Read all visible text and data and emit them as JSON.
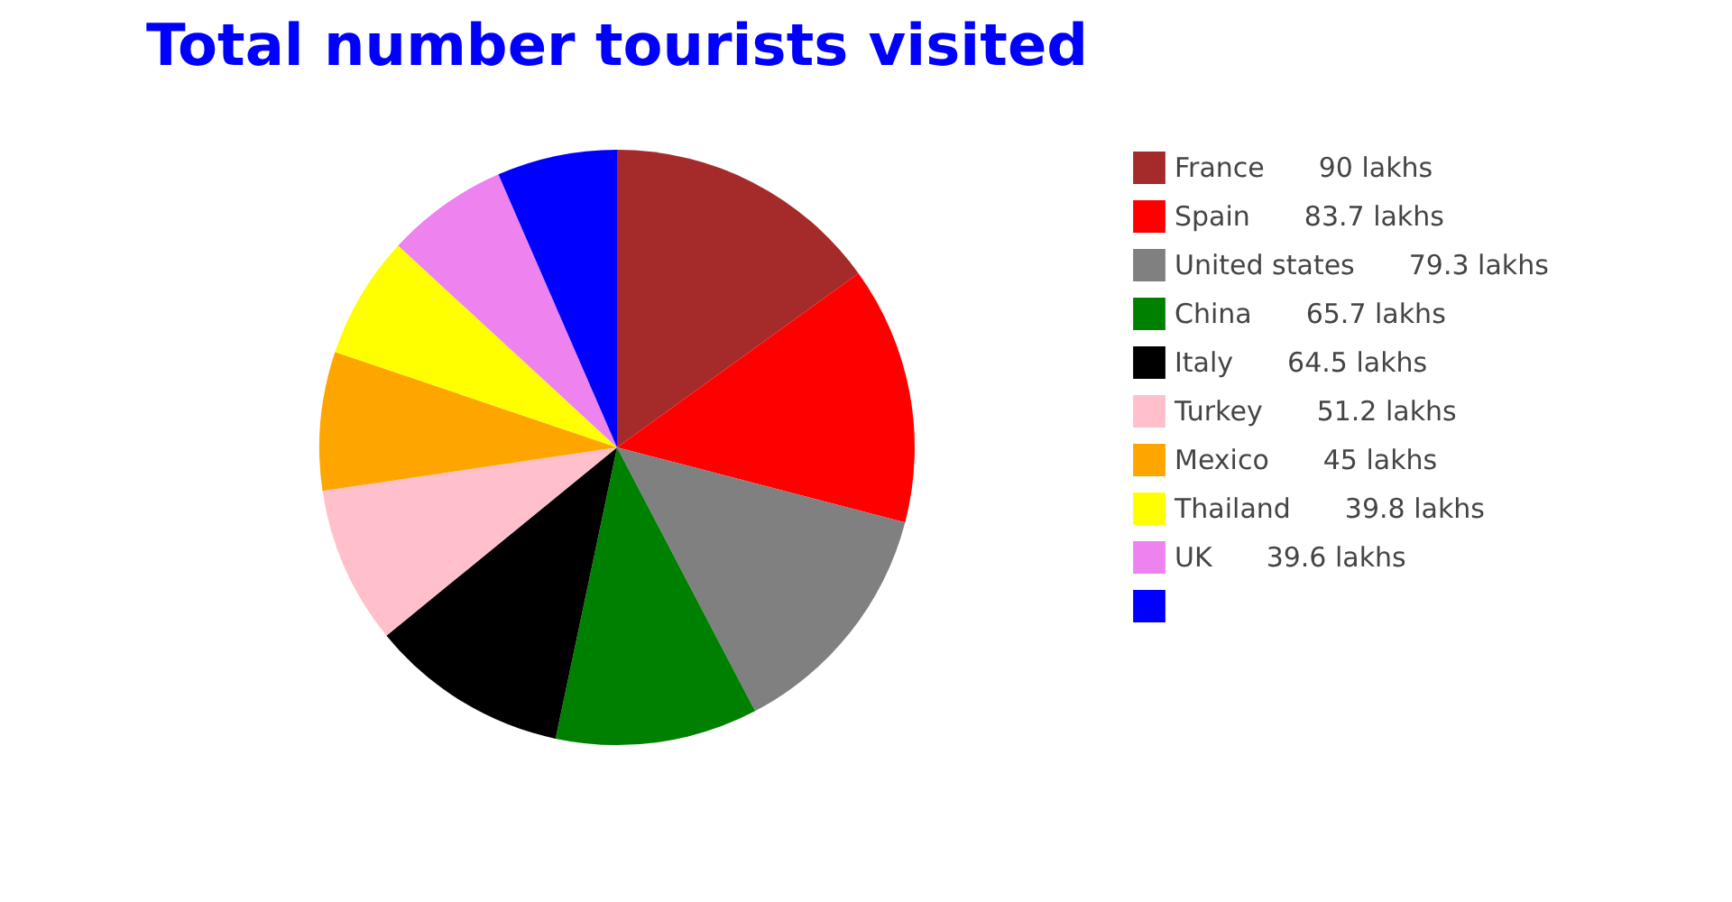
{
  "chart_data": {
    "type": "pie",
    "title": "Total number tourists visited",
    "categories": [
      "France",
      "Spain",
      "United states",
      "China",
      "Italy",
      "Turkey",
      "Mexico",
      "Thailand",
      "UK",
      null
    ],
    "values": [
      90,
      83.7,
      79.3,
      65.7,
      64.5,
      51.2,
      45,
      39.8,
      39.6,
      39
    ],
    "value_labels": [
      "90 lakhs",
      "83.7 lakhs",
      "79.3 lakhs",
      "65.7 lakhs",
      "64.5 lakhs",
      "51.2 lakhs",
      "45 lakhs",
      "39.8 lakhs",
      "39.6 lakhs",
      null
    ],
    "colors": [
      "#a52a2a",
      "#ff0000",
      "#808080",
      "#008000",
      "#000000",
      "#ffc0cb",
      "#ffa500",
      "#ffff00",
      "#ee82ee",
      "#0000ff"
    ],
    "legend": "right"
  }
}
